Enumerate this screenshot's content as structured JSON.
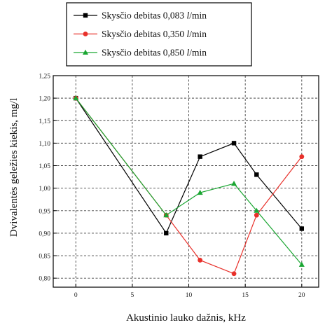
{
  "chart_data": {
    "type": "line",
    "title": "",
    "xlabel": "Akustinio lauko dažnis, kHz",
    "ylabel": "Dvivalentės geležies kiekis, mg/l",
    "xlim": [
      -2,
      21.5
    ],
    "ylim": [
      0.78,
      1.25
    ],
    "xticks": [
      0,
      5,
      10,
      15,
      20
    ],
    "xtick_labels": [
      "0",
      "5",
      "10",
      "15",
      "20"
    ],
    "yticks": [
      0.8,
      0.85,
      0.9,
      0.95,
      1.0,
      1.05,
      1.1,
      1.15,
      1.2,
      1.25
    ],
    "ytick_labels": [
      "0,80",
      "0,85",
      "0,90",
      "0,95",
      "1,00",
      "1,05",
      "1,10",
      "1,15",
      "1,20",
      "1,25"
    ],
    "grid": true,
    "legend_position": "top-right",
    "series": [
      {
        "name": "Skysčio debitas 0,083 l/min",
        "label_prefix": "Skysčio debitas 0,083 ",
        "label_unit": "l",
        "label_suffix": "/min",
        "color": "#000000",
        "marker": "square",
        "x": [
          0,
          8,
          11,
          14,
          16,
          20
        ],
        "y": [
          1.2,
          0.9,
          1.07,
          1.1,
          1.03,
          0.91
        ]
      },
      {
        "name": "Skysčio debitas 0,350 l/min",
        "label_prefix": "Skysčio debitas 0,350 ",
        "label_unit": "l",
        "label_suffix": "/min",
        "color": "#e8302a",
        "marker": "circle",
        "x": [
          0,
          8,
          11,
          14,
          16,
          20
        ],
        "y": [
          1.2,
          0.94,
          0.84,
          0.81,
          0.94,
          1.07
        ]
      },
      {
        "name": "Skysčio debitas 0,850 l/min",
        "label_prefix": "Skysčio debitas 0,850 ",
        "label_unit": "l",
        "label_suffix": "/min",
        "color": "#1aa632",
        "marker": "triangle",
        "x": [
          0,
          8,
          11,
          14,
          16,
          20
        ],
        "y": [
          1.2,
          0.94,
          0.99,
          1.01,
          0.95,
          0.83
        ]
      }
    ]
  }
}
